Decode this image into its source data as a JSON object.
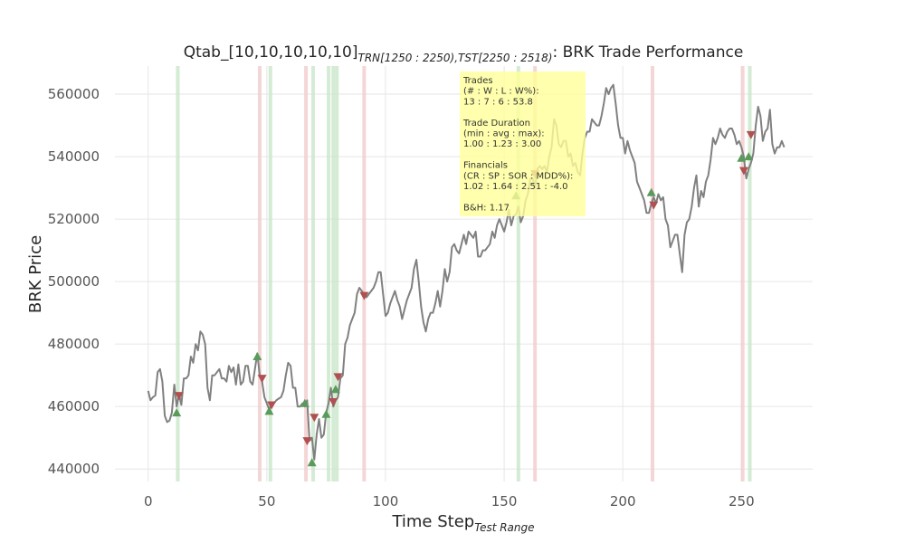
{
  "chart_data": {
    "type": "line",
    "title": {
      "prefix": "Qtab_[10,10,10,10,10]",
      "sub1": "TRN[1250 : 2250),TST[2250 : 2518)",
      "suffix": ": BRK Trade Performance"
    },
    "xlabel": "Time Step",
    "xlabel_sub": "Test Range",
    "ylabel": "BRK Price",
    "xlim": [
      -14,
      280
    ],
    "ylim": [
      436000,
      569000
    ],
    "xticks": [
      0,
      50,
      100,
      150,
      200,
      250
    ],
    "yticks": [
      440000,
      460000,
      480000,
      500000,
      520000,
      540000,
      560000
    ],
    "grid": true,
    "colors": {
      "line": "#808080",
      "buy": "#5a9a5a",
      "sell": "#b05050",
      "win_band": "#c9e6c9",
      "loss_band": "#f3cccc",
      "info_box": "#ffff99"
    },
    "series": [
      {
        "values": [
          465000,
          462000,
          463000,
          463500,
          471000,
          472000,
          468000,
          457000,
          455000,
          455500,
          458000,
          467000,
          460000,
          464000,
          460500,
          469000,
          469000,
          470000,
          476000,
          474000,
          480000,
          478000,
          484000,
          483000,
          480000,
          466000,
          462000,
          470000,
          470000,
          471000,
          472000,
          469000,
          469000,
          468000,
          473000,
          471000,
          472500,
          467000,
          473500,
          467000,
          468000,
          473000,
          473000,
          468000,
          467000,
          472000,
          477000,
          470000,
          468000,
          463000,
          461000,
          459000,
          461000,
          461000,
          462000,
          462500,
          463000,
          465000,
          470000,
          474000,
          473000,
          466000,
          466000,
          460000,
          460000,
          461000,
          460000,
          462000,
          449000,
          450000,
          443000,
          451000,
          456000,
          450000,
          451000,
          458000,
          461000,
          466000,
          460000,
          462000,
          463000,
          469000,
          470000,
          480000,
          482000,
          486000,
          488000,
          490000,
          496000,
          498000,
          497000,
          496000,
          495000,
          496000,
          497000,
          498000,
          500000,
          503000,
          503000,
          496000,
          489000,
          490000,
          493000,
          495000,
          497000,
          494000,
          492000,
          488000,
          491000,
          494000,
          496000,
          498000,
          504000,
          507000,
          500000,
          492000,
          487000,
          484000,
          488000,
          490000,
          490000,
          493000,
          497000,
          492000,
          497000,
          504000,
          500000,
          503000,
          511000,
          512000,
          510000,
          509000,
          512000,
          515000,
          512000,
          516000,
          515000,
          514000,
          516000,
          508000,
          508000,
          510000,
          510000,
          511000,
          512000,
          516000,
          514000,
          518000,
          520000,
          518000,
          516000,
          519000,
          523000,
          518000,
          521000,
          521500,
          524000,
          519000,
          521000,
          526000,
          528000,
          533000,
          533000,
          530000,
          536000,
          537000,
          536000,
          537000,
          535000,
          540000,
          543000,
          552000,
          550000,
          544000,
          543000,
          545000,
          545000,
          540000,
          541000,
          537000,
          538000,
          535000,
          534000,
          541000,
          546000,
          548000,
          548000,
          552000,
          551000,
          550000,
          550000,
          553000,
          557000,
          562000,
          560000,
          562000,
          563000,
          557000,
          550000,
          546000,
          546000,
          541000,
          545000,
          542000,
          540000,
          538000,
          532000,
          530000,
          528000,
          526000,
          522000,
          522000,
          525000,
          527000,
          525000,
          528000,
          526000,
          527000,
          520000,
          518000,
          511000,
          513000,
          515000,
          515000,
          509000,
          503000,
          515000,
          519000,
          520000,
          524000,
          530000,
          534000,
          524000,
          529000,
          527000,
          532000,
          534000,
          539000,
          546000,
          544000,
          546000,
          549000,
          547000,
          546000,
          548000,
          549000,
          549000,
          547000,
          544000,
          545000,
          543000,
          540000,
          533000,
          536000,
          538000,
          541000,
          550000,
          556000,
          553000,
          545000,
          548000,
          549000,
          555000,
          544000,
          541000,
          543000,
          543000,
          545000,
          543000
        ]
      }
    ],
    "buy_markers": [
      {
        "x": 12,
        "y": 458000
      },
      {
        "x": 46,
        "y": 476000
      },
      {
        "x": 51,
        "y": 458500
      },
      {
        "x": 66,
        "y": 461000
      },
      {
        "x": 69,
        "y": 442000
      },
      {
        "x": 75,
        "y": 457500
      },
      {
        "x": 79,
        "y": 465500
      },
      {
        "x": 155,
        "y": 527500
      },
      {
        "x": 212,
        "y": 528500
      },
      {
        "x": 250,
        "y": 539500
      },
      {
        "x": 253,
        "y": 540000
      }
    ],
    "sell_markers": [
      {
        "x": 13,
        "y": 463500
      },
      {
        "x": 48,
        "y": 469000
      },
      {
        "x": 52,
        "y": 460500
      },
      {
        "x": 67,
        "y": 449000
      },
      {
        "x": 70,
        "y": 456500
      },
      {
        "x": 78,
        "y": 461500
      },
      {
        "x": 80,
        "y": 469500
      },
      {
        "x": 91,
        "y": 495500
      },
      {
        "x": 163,
        "y": 534500
      },
      {
        "x": 213,
        "y": 524500
      },
      {
        "x": 251,
        "y": 535500
      },
      {
        "x": 254,
        "y": 547000
      }
    ],
    "bands": [
      {
        "x": 12.5,
        "outcome": "win"
      },
      {
        "x": 47,
        "outcome": "loss"
      },
      {
        "x": 51.5,
        "outcome": "win"
      },
      {
        "x": 66.5,
        "outcome": "loss"
      },
      {
        "x": 69.5,
        "outcome": "win"
      },
      {
        "x": 76,
        "outcome": "win"
      },
      {
        "x": 78,
        "outcome": "win"
      },
      {
        "x": 79.5,
        "outcome": "win"
      },
      {
        "x": 91,
        "outcome": "loss"
      },
      {
        "x": 156,
        "outcome": "win"
      },
      {
        "x": 163,
        "outcome": "loss"
      },
      {
        "x": 212.5,
        "outcome": "loss"
      },
      {
        "x": 250.5,
        "outcome": "loss"
      },
      {
        "x": 253.5,
        "outcome": "win"
      }
    ],
    "info_box": {
      "lines": [
        "Trades",
        "(# : W : L : W%):",
        "13 : 7 : 6 : 53.8",
        "",
        "Trade Duration",
        "(min : avg : max):",
        "1.00 : 1.23 : 3.00",
        "",
        "Financials",
        "(CR : SP : SOR : MDD%):",
        "1.02 : 1.64 : 2.51 : -4.0",
        "",
        "B&H: 1.17"
      ]
    }
  }
}
